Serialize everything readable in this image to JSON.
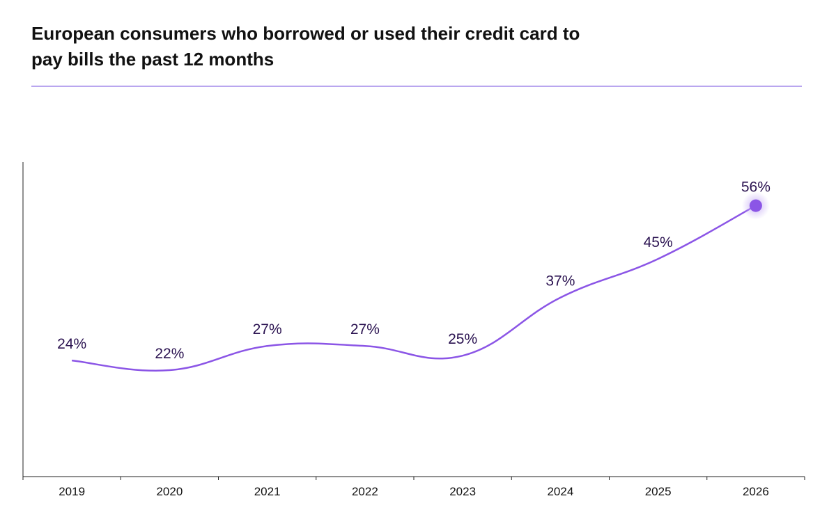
{
  "chart_data": {
    "type": "line",
    "title": "European consumers who borrowed or used their credit card to pay bills the past 12 months",
    "x": [
      "2019",
      "2020",
      "2021",
      "2022",
      "2023",
      "2024",
      "2025",
      "2026"
    ],
    "series": [
      {
        "values": [
          24,
          22,
          27,
          27,
          25,
          37,
          45,
          56
        ],
        "labels": [
          "24%",
          "22%",
          "27%",
          "27%",
          "25%",
          "37%",
          "45%",
          "56%"
        ]
      }
    ],
    "highlight_last_point": true,
    "ylim": [
      0,
      65
    ],
    "grid": false,
    "colors": {
      "line": "#8b55e6",
      "marker": "#8b55e6",
      "marker_glow": "#c8b0f5",
      "label": "#2a1250",
      "rule": "#b9a6ef"
    }
  }
}
